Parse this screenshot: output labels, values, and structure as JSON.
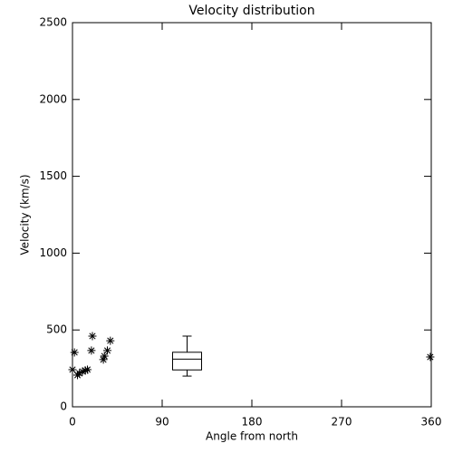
{
  "chart_data": {
    "type": "scatter",
    "title": "Velocity distribution",
    "x_label": "Angle from north",
    "y_label": "Velocity (km/s)",
    "x": [
      0,
      2,
      5,
      7,
      10,
      13,
      15,
      19,
      20,
      31,
      32,
      35,
      38,
      359
    ],
    "y": [
      242,
      354,
      206,
      218,
      230,
      236,
      242,
      366,
      460,
      307,
      330,
      366,
      430,
      324
    ],
    "color": "#000000",
    "box": {
      "x": 115,
      "min": 200,
      "q1": 240,
      "median": 310,
      "q3": 355,
      "max": 460
    },
    "xlim": [
      0,
      360
    ],
    "xticks": [
      0,
      90,
      180,
      270,
      360
    ],
    "ylim": [
      0,
      2500
    ],
    "yticks": [
      0,
      500,
      1000,
      1500,
      2000,
      2500
    ]
  }
}
